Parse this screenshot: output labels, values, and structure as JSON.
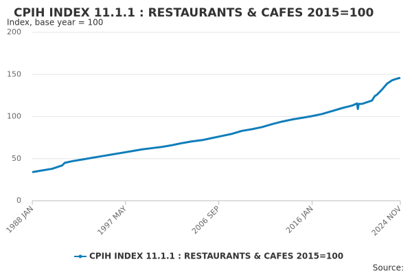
{
  "chart_data": {
    "type": "line",
    "title": "CPIH INDEX 11.1.1 : RESTAURANTS & CAFES 2015=100",
    "subtitle": "Index, base year = 100",
    "source": "Source:",
    "xlim": [
      1988,
      2024.833
    ],
    "xticks": [
      {
        "value": 1988,
        "label": "1988 JAN"
      },
      {
        "value": 1997.333,
        "label": "1997 MAY"
      },
      {
        "value": 2006.667,
        "label": "2006 SEP"
      },
      {
        "value": 2016,
        "label": "2016 JAN"
      },
      {
        "value": 2024.833,
        "label": "2024 NOV"
      }
    ],
    "ylim": [
      0,
      200
    ],
    "yticks": [
      0,
      50,
      100,
      150,
      200
    ],
    "grid": true,
    "series": [
      {
        "name": "CPIH INDEX 11.1.1 : RESTAURANTS & CAFES 2015=100",
        "color": "#0f7dbb",
        "x": [
          1988,
          1989,
          1990,
          1991,
          1991.25,
          1992,
          1993,
          1994,
          1995,
          1996,
          1997,
          1998,
          1999,
          2000,
          2001,
          2002,
          2003,
          2004,
          2005,
          2006,
          2007,
          2008,
          2009,
          2010,
          2011,
          2012,
          2013,
          2014,
          2015,
          2016,
          2017,
          2018,
          2019,
          2020,
          2020.5,
          2020.583,
          2020.667,
          2021,
          2021.75,
          2022,
          2022.25,
          2022.5,
          2023,
          2023.5,
          2024,
          2024.5,
          2024.833
        ],
        "values": [
          34,
          36,
          38,
          42,
          45,
          47,
          49,
          51,
          53,
          55,
          57,
          59,
          61,
          62.5,
          64,
          66,
          68.5,
          70.5,
          72,
          74.5,
          77,
          79.5,
          83,
          85,
          87.5,
          91,
          94,
          96.5,
          98.5,
          100.5,
          103,
          106.5,
          110,
          113,
          115.5,
          109,
          115,
          115,
          118,
          119,
          124,
          126,
          132,
          139,
          143,
          145,
          146
        ]
      }
    ]
  }
}
